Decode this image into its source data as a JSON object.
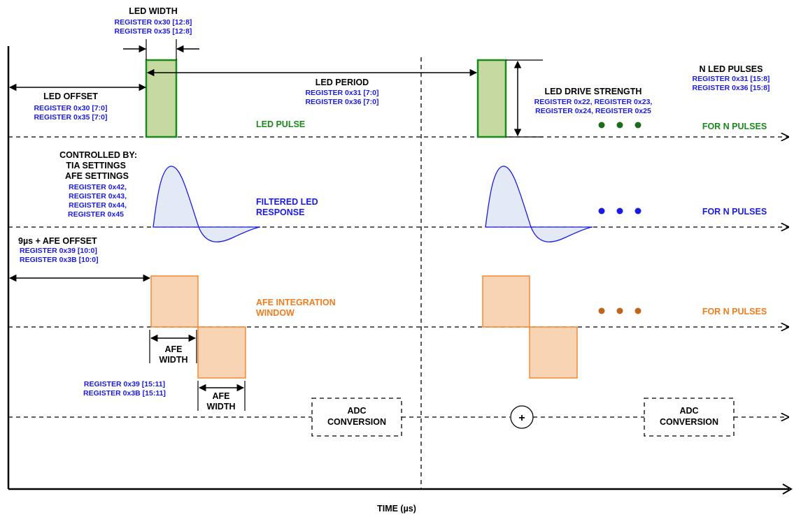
{
  "led_width": {
    "title": "LED WIDTH",
    "registers": [
      "REGISTER 0x30 [12:8]",
      "REGISTER 0x35 [12:8]"
    ]
  },
  "led_offset": {
    "title": "LED OFFSET",
    "registers": [
      "REGISTER 0x30 [7:0]",
      "REGISTER 0x35 [7:0]"
    ]
  },
  "led_period": {
    "title": "LED PERIOD",
    "registers": [
      "REGISTER 0x31 [7:0]",
      "REGISTER 0x36 [7:0]"
    ]
  },
  "led_drive_strength": {
    "title": "LED DRIVE STRENGTH",
    "registers": [
      "REGISTER 0x22, REGISTER 0x23,",
      "REGISTER 0x24, REGISTER 0x25"
    ]
  },
  "n_led_pulses": {
    "title": "N LED PULSES",
    "registers": [
      "REGISTER 0x31 [15:8]",
      "REGISTER 0x36 [15:8]"
    ]
  },
  "led_pulse_label": "LED PULSE",
  "controlled_by": {
    "lines": [
      "CONTROLLED BY:",
      "TIA SETTINGS",
      "AFE SETTINGS"
    ],
    "registers": [
      "REGISTER 0x42,",
      "REGISTER 0x43,",
      "REGISTER 0x44,",
      "REGISTER 0x45"
    ]
  },
  "filtered_response_label": [
    "FILTERED LED",
    "RESPONSE"
  ],
  "afe_offset": {
    "title": "9µs + AFE OFFSET",
    "registers": [
      "REGISTER 0x39 [10:0]",
      "REGISTER 0x3B [10:0]"
    ]
  },
  "afe_window_label": [
    "AFE INTEGRATION",
    "WINDOW"
  ],
  "afe_width_label": [
    "AFE",
    "WIDTH"
  ],
  "afe_width_registers": [
    "REGISTER 0x39 [15:11]",
    "REGISTER 0x3B [15:11]"
  ],
  "for_n_pulses": "FOR N PULSES",
  "adc_conversion": [
    "ADC",
    "CONVERSION"
  ],
  "adder_symbol": "+",
  "time_axis_label": "TIME (µs)",
  "colors": {
    "green": "#1a8a1a",
    "green_fill": "#c5d9a0",
    "blue_text": "#1a1ae6",
    "blue_curve": "#1a1ae6",
    "blue_fill": "#e3e9f5",
    "orange": "#f07c1c",
    "orange_fill": "#f9d4b4"
  }
}
